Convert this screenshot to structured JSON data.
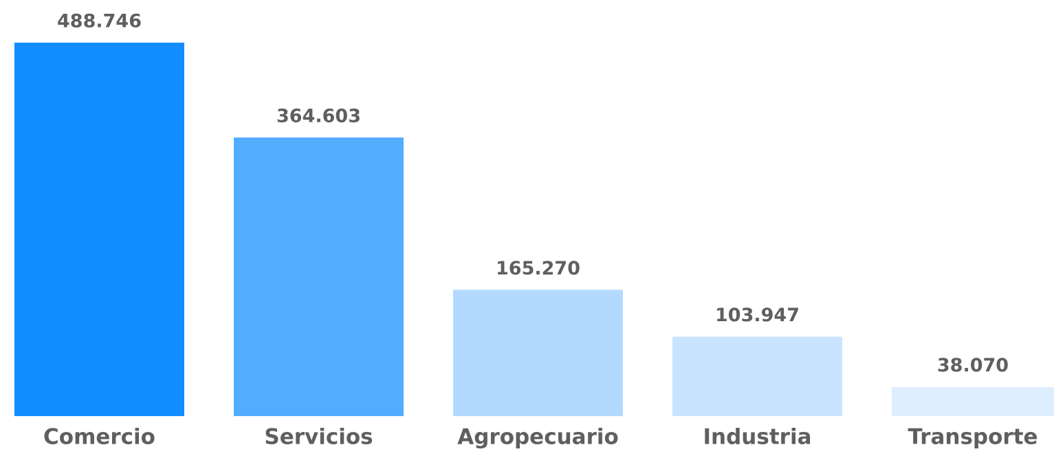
{
  "chart_data": {
    "type": "bar",
    "categories": [
      "Comercio",
      "Servicios",
      "Agropecuario",
      "Industria",
      "Transporte"
    ],
    "values": [
      488746,
      364603,
      165270,
      103947,
      38070
    ],
    "value_labels": [
      "488.746",
      "364.603",
      "165.270",
      "103.947",
      "38.070"
    ],
    "colors": [
      "#118dff",
      "#52acff",
      "#b3d9ff",
      "#c9e4ff",
      "#dfeeff"
    ]
  }
}
